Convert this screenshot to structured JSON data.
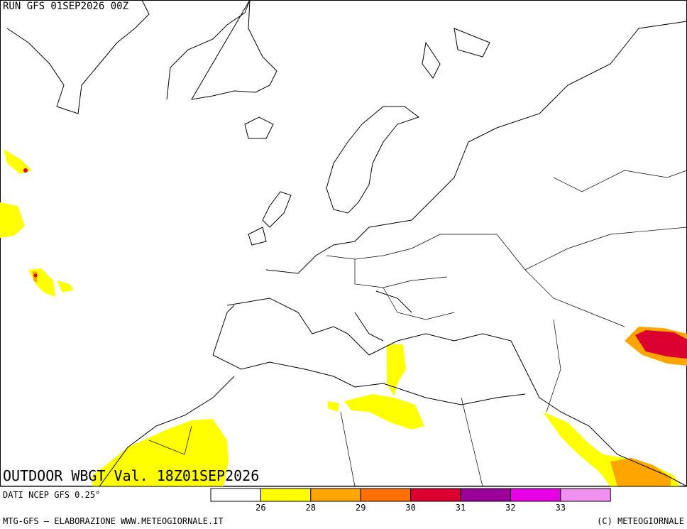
{
  "header": {
    "run": "RUN GFS 01SEP2026 00Z"
  },
  "title": "OUTDOOR WBGT Val. 18Z01SEP2026",
  "source": "DATI NCEP GFS 0.25°",
  "legend": {
    "colors": [
      "#ffffff",
      "#ffff00",
      "#ffa500",
      "#ff7000",
      "#dc0030",
      "#9a0099",
      "#e600e6",
      "#f090f0"
    ],
    "thresholds": [
      26,
      28,
      29,
      30,
      31,
      32,
      33
    ]
  },
  "footer": {
    "left": "MTG-GFS — ELABORAZIONE WWW.METEOGIORNALE.IT",
    "right": "(C) METEOGIORNALE"
  }
}
